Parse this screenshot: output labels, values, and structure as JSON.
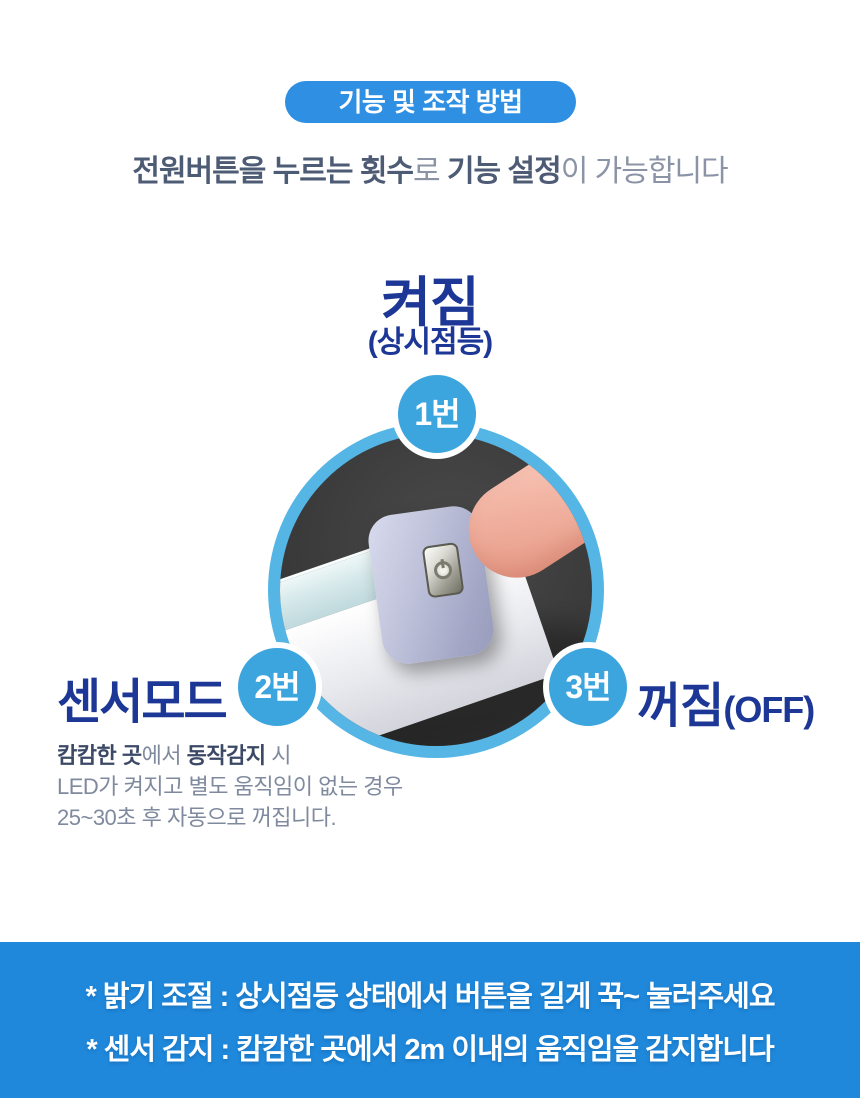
{
  "colors": {
    "accent_blue": "#2e8fe3",
    "badge_blue": "#3da5de",
    "ring_blue": "#55b5e5",
    "navy": "#1c3795",
    "banner_blue": "#1f88db"
  },
  "header": {
    "badge_label": "기능 및 조작 방법",
    "subtitle": {
      "b1": "전원버튼을 누르는 횟수",
      "r1": "로 ",
      "b2": "기능 설정",
      "r2": "이 가능합니다"
    }
  },
  "steps": {
    "on": {
      "badge": "1번",
      "title": "켜짐",
      "subtitle": "(상시점등)"
    },
    "sensor": {
      "badge": "2번",
      "title": "센서모드",
      "desc": {
        "l1_b1": "캄캄한 곳",
        "l1_r1": "에서 ",
        "l1_b2": "동작감지",
        "l1_r2": " 시",
        "l2": "LED가 켜지고 별도 움직임이 없는 경우",
        "l3": "25~30초 후 자동으로 꺼집니다."
      }
    },
    "off": {
      "badge": "3번",
      "title": "꺼짐",
      "suffix": "(OFF)"
    }
  },
  "photo": {
    "subject": "finger pressing the metal power button on the end cap of an LED sensor light bar"
  },
  "footer": {
    "line1": "* 밝기 조절 : 상시점등 상태에서 버튼을 길게 꾹~ 눌러주세요",
    "line2": "* 센서 감지 : 캄캄한 곳에서 2m 이내의 움직임을 감지합니다"
  }
}
